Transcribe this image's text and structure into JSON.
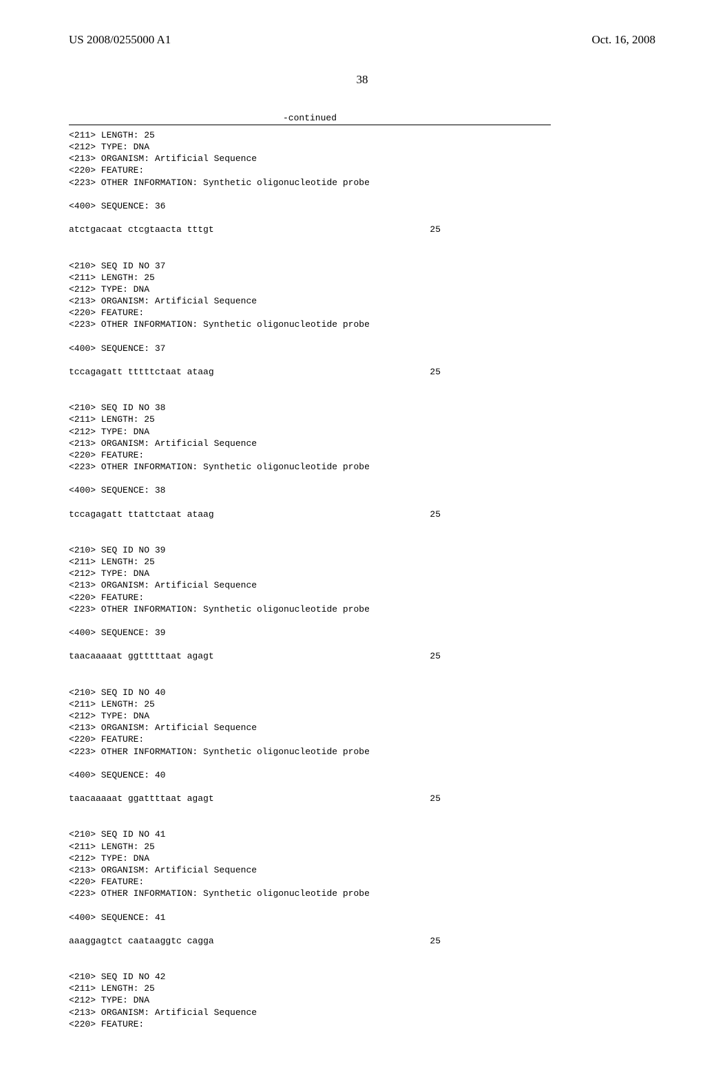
{
  "header": {
    "publication_number": "US 2008/0255000 A1",
    "date": "Oct. 16, 2008"
  },
  "page_number": "38",
  "continued_label": "-continued",
  "entries": [
    {
      "pre_lines": [
        "<211> LENGTH: 25",
        "<212> TYPE: DNA",
        "<213> ORGANISM: Artificial Sequence",
        "<220> FEATURE:",
        "<223> OTHER INFORMATION: Synthetic oligonucleotide probe"
      ],
      "seq_header": "<400> SEQUENCE: 36",
      "sequence": "atctgacaat ctcgtaacta tttgt",
      "length": "25"
    },
    {
      "pre_lines": [
        "<210> SEQ ID NO 37",
        "<211> LENGTH: 25",
        "<212> TYPE: DNA",
        "<213> ORGANISM: Artificial Sequence",
        "<220> FEATURE:",
        "<223> OTHER INFORMATION: Synthetic oligonucleotide probe"
      ],
      "seq_header": "<400> SEQUENCE: 37",
      "sequence": "tccagagatt tttttctaat ataag",
      "length": "25"
    },
    {
      "pre_lines": [
        "<210> SEQ ID NO 38",
        "<211> LENGTH: 25",
        "<212> TYPE: DNA",
        "<213> ORGANISM: Artificial Sequence",
        "<220> FEATURE:",
        "<223> OTHER INFORMATION: Synthetic oligonucleotide probe"
      ],
      "seq_header": "<400> SEQUENCE: 38",
      "sequence": "tccagagatt ttattctaat ataag",
      "length": "25"
    },
    {
      "pre_lines": [
        "<210> SEQ ID NO 39",
        "<211> LENGTH: 25",
        "<212> TYPE: DNA",
        "<213> ORGANISM: Artificial Sequence",
        "<220> FEATURE:",
        "<223> OTHER INFORMATION: Synthetic oligonucleotide probe"
      ],
      "seq_header": "<400> SEQUENCE: 39",
      "sequence": "taacaaaaat ggtttttaat agagt",
      "length": "25"
    },
    {
      "pre_lines": [
        "<210> SEQ ID NO 40",
        "<211> LENGTH: 25",
        "<212> TYPE: DNA",
        "<213> ORGANISM: Artificial Sequence",
        "<220> FEATURE:",
        "<223> OTHER INFORMATION: Synthetic oligonucleotide probe"
      ],
      "seq_header": "<400> SEQUENCE: 40",
      "sequence": "taacaaaaat ggattttaat agagt",
      "length": "25"
    },
    {
      "pre_lines": [
        "<210> SEQ ID NO 41",
        "<211> LENGTH: 25",
        "<212> TYPE: DNA",
        "<213> ORGANISM: Artificial Sequence",
        "<220> FEATURE:",
        "<223> OTHER INFORMATION: Synthetic oligonucleotide probe"
      ],
      "seq_header": "<400> SEQUENCE: 41",
      "sequence": "aaaggagtct caataaggtc cagga",
      "length": "25"
    },
    {
      "pre_lines": [
        "<210> SEQ ID NO 42",
        "<211> LENGTH: 25",
        "<212> TYPE: DNA",
        "<213> ORGANISM: Artificial Sequence",
        "<220> FEATURE:"
      ],
      "seq_header": "",
      "sequence": "",
      "length": ""
    }
  ]
}
